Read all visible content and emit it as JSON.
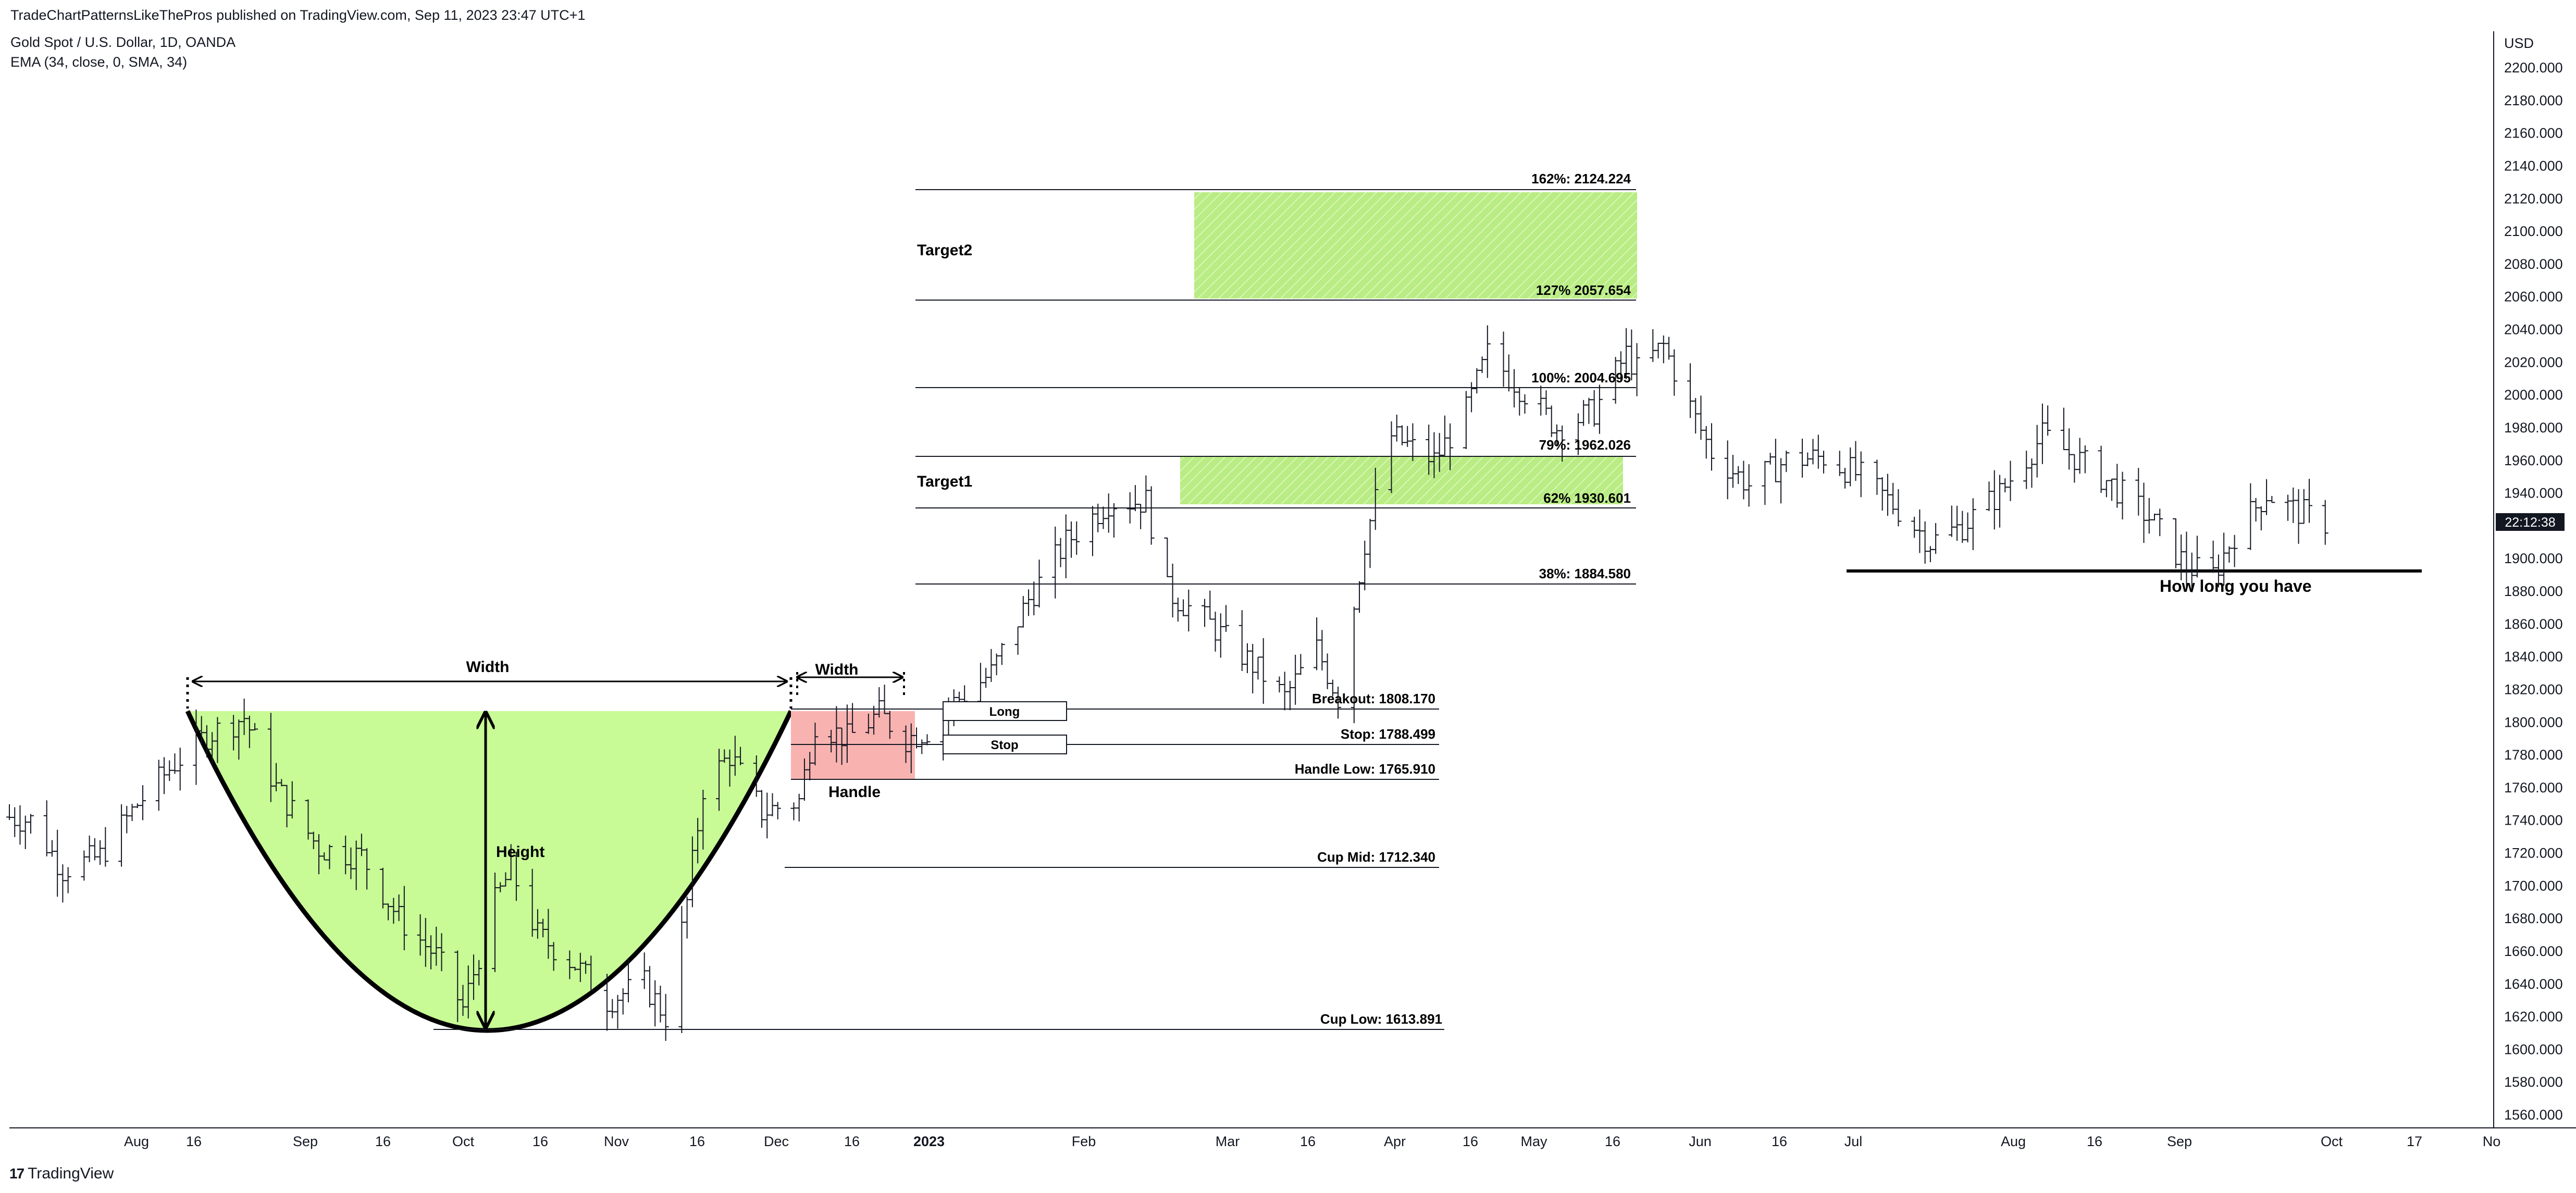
{
  "header": {
    "publisher": "TradeChartPatternsLikeThePros published on TradingView.com, Sep 11, 2023 23:47 UTC+1",
    "symbol": "Gold Spot / U.S. Dollar, 1D, OANDA",
    "indicator": "EMA (34, close, 0, SMA, 34)"
  },
  "footer": {
    "logo_text": "TradingView",
    "logo_mark": "17"
  },
  "price_axis": {
    "currency": "USD",
    "current_price_tag": "22:12:38",
    "ticks": [
      "2200.000",
      "2180.000",
      "2160.000",
      "2140.000",
      "2120.000",
      "2100.000",
      "2080.000",
      "2060.000",
      "2040.000",
      "2020.000",
      "2000.000",
      "1980.000",
      "1960.000",
      "1940.000",
      "1920.000",
      "1900.000",
      "1880.000",
      "1860.000",
      "1840.000",
      "1820.000",
      "1800.000",
      "1780.000",
      "1760.000",
      "1740.000",
      "1720.000",
      "1700.000",
      "1680.000",
      "1660.000",
      "1640.000",
      "1620.000",
      "1600.000",
      "1580.000",
      "1560.000"
    ]
  },
  "time_axis": {
    "labels": [
      "Aug",
      "16",
      "Sep",
      "16",
      "Oct",
      "16",
      "Nov",
      "16",
      "Dec",
      "16",
      "2023",
      "Feb",
      "Mar",
      "16",
      "Apr",
      "16",
      "May",
      "16",
      "Jun",
      "16",
      "Jul",
      "Aug",
      "16",
      "Sep",
      "Oct",
      "17",
      "No"
    ]
  },
  "annotations": {
    "cup_width": "Width",
    "handle_width": "Width",
    "height": "Height",
    "handle": "Handle",
    "long": "Long",
    "stop": "Stop",
    "target1": "Target1",
    "target2": "Target2",
    "how_long": "How long you have",
    "levels": {
      "breakout": "Breakout: 1808.170",
      "stop": "Stop: 1788.499",
      "handle_low": "Handle Low: 1765.910",
      "cup_mid": "Cup Mid: 1712.340",
      "cup_low": "Cup Low: 1613.891",
      "fib162": "162%: 2124.224",
      "fib127": "127% 2057.654",
      "fib100": "100%: 2004.695",
      "fib79": "79%: 1962.026",
      "fib62": "62% 1930.601",
      "fib38": "38%: 1884.580"
    }
  },
  "colors": {
    "cup_fill": "#c8fa96",
    "handle_fill": "#f8b3b1",
    "target_fill": "#b9ec84",
    "bar": "#131722",
    "price_tag_bg": "#131722"
  },
  "chart_data": {
    "type": "ohlc",
    "title": "Gold Spot / U.S. Dollar, 1D, OANDA",
    "ylabel": "USD",
    "ylim": [
      1550,
      2210
    ],
    "x_start": "2022-07-04",
    "x_end": "2023-11-05",
    "price_levels": [
      {
        "name": "Breakout",
        "value": 1808.17
      },
      {
        "name": "Stop",
        "value": 1788.499
      },
      {
        "name": "Handle Low",
        "value": 1765.91
      },
      {
        "name": "Cup Mid",
        "value": 1712.34
      },
      {
        "name": "Cup Low",
        "value": 1613.891
      },
      {
        "name": "162%",
        "value": 2124.224
      },
      {
        "name": "127%",
        "value": 2057.654
      },
      {
        "name": "100%",
        "value": 2004.695
      },
      {
        "name": "79%",
        "value": 1962.026
      },
      {
        "name": "62%",
        "value": 1930.601
      },
      {
        "name": "38%",
        "value": 1884.58
      }
    ],
    "close_path": [
      [
        "2022-07-04",
        1742
      ],
      [
        "2022-07-08",
        1740
      ],
      [
        "2022-07-14",
        1710
      ],
      [
        "2022-07-21",
        1718
      ],
      [
        "2022-07-28",
        1750
      ],
      [
        "2022-08-04",
        1775
      ],
      [
        "2022-08-10",
        1792
      ],
      [
        "2022-08-17",
        1803
      ],
      [
        "2022-08-23",
        1760
      ],
      [
        "2022-08-31",
        1723
      ],
      [
        "2022-09-08",
        1718
      ],
      [
        "2022-09-15",
        1680
      ],
      [
        "2022-09-22",
        1657
      ],
      [
        "2022-09-27",
        1625
      ],
      [
        "2022-10-03",
        1690
      ],
      [
        "2022-10-06",
        1710
      ],
      [
        "2022-10-11",
        1670
      ],
      [
        "2022-10-18",
        1652
      ],
      [
        "2022-10-24",
        1630
      ],
      [
        "2022-10-31",
        1640
      ],
      [
        "2022-11-04",
        1620
      ],
      [
        "2022-11-08",
        1690
      ],
      [
        "2022-11-11",
        1760
      ],
      [
        "2022-11-16",
        1780
      ],
      [
        "2022-11-22",
        1745
      ],
      [
        "2022-11-29",
        1752
      ],
      [
        "2022-12-02",
        1800
      ],
      [
        "2022-12-08",
        1790
      ],
      [
        "2022-12-14",
        1805
      ],
      [
        "2022-12-19",
        1790
      ],
      [
        "2022-12-23",
        1795
      ],
      [
        "2022-12-28",
        1812
      ],
      [
        "2023-01-04",
        1830
      ],
      [
        "2023-01-11",
        1875
      ],
      [
        "2023-01-18",
        1910
      ],
      [
        "2023-01-26",
        1935
      ],
      [
        "2023-02-02",
        1935
      ],
      [
        "2023-02-06",
        1880
      ],
      [
        "2023-02-14",
        1860
      ],
      [
        "2023-02-22",
        1835
      ],
      [
        "2023-02-28",
        1815
      ],
      [
        "2023-03-06",
        1845
      ],
      [
        "2023-03-10",
        1815
      ],
      [
        "2023-03-15",
        1910
      ],
      [
        "2023-03-20",
        1975
      ],
      [
        "2023-03-28",
        1960
      ],
      [
        "2023-04-03",
        1990
      ],
      [
        "2023-04-07",
        2025
      ],
      [
        "2023-04-13",
        2005
      ],
      [
        "2023-04-20",
        1980
      ],
      [
        "2023-04-27",
        1990
      ],
      [
        "2023-05-03",
        2025
      ],
      [
        "2023-05-05",
        2015
      ],
      [
        "2023-05-10",
        2030
      ],
      [
        "2023-05-16",
        1985
      ],
      [
        "2023-05-19",
        1965
      ],
      [
        "2023-05-26",
        1945
      ],
      [
        "2023-06-02",
        1960
      ],
      [
        "2023-06-09",
        1962
      ],
      [
        "2023-06-16",
        1950
      ],
      [
        "2023-06-23",
        1930
      ],
      [
        "2023-06-29",
        1910
      ],
      [
        "2023-07-05",
        1920
      ],
      [
        "2023-07-12",
        1940
      ],
      [
        "2023-07-20",
        1975
      ],
      [
        "2023-07-27",
        1960
      ],
      [
        "2023-08-02",
        1945
      ],
      [
        "2023-08-09",
        1925
      ],
      [
        "2023-08-16",
        1895
      ],
      [
        "2023-08-21",
        1890
      ],
      [
        "2023-08-25",
        1915
      ],
      [
        "2023-08-31",
        1940
      ],
      [
        "2023-09-05",
        1930
      ],
      [
        "2023-09-11",
        1922
      ]
    ]
  }
}
